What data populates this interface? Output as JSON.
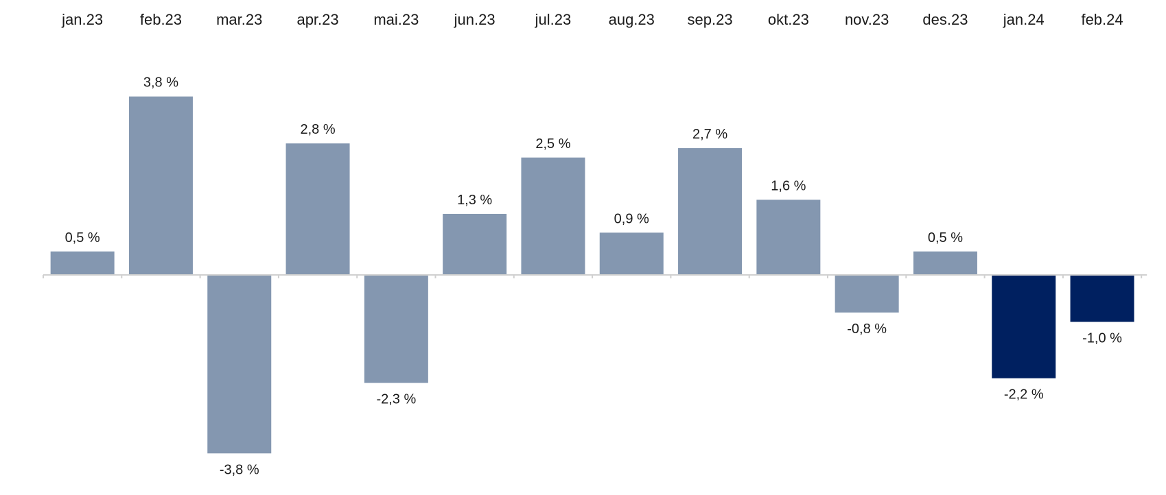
{
  "chart_data": {
    "type": "bar",
    "categories": [
      "jan.23",
      "feb.23",
      "mar.23",
      "apr.23",
      "mai.23",
      "jun.23",
      "jul.23",
      "aug.23",
      "sep.23",
      "okt.23",
      "nov.23",
      "des.23",
      "jan.24",
      "feb.24"
    ],
    "values": [
      0.5,
      3.8,
      -3.8,
      2.8,
      -2.3,
      1.3,
      2.5,
      0.9,
      2.7,
      1.6,
      -0.8,
      0.5,
      -2.2,
      -1.0
    ],
    "value_labels": [
      "0,5 %",
      "3,8 %",
      "-3,8 %",
      "2,8 %",
      "-2,3 %",
      "1,3 %",
      "2,5 %",
      "0,9 %",
      "2,7 %",
      "1,6 %",
      "-0,8 %",
      "0,5 %",
      "-2,2 %",
      "-1,0 %"
    ],
    "highlighted": [
      false,
      false,
      false,
      false,
      false,
      false,
      false,
      false,
      false,
      false,
      false,
      false,
      true,
      true
    ],
    "title": "",
    "xlabel": "",
    "ylabel": "",
    "ylim": [
      -4,
      4
    ],
    "category_labels_position": "top",
    "grid": false,
    "legend": "none",
    "colors": {
      "bar": "#8497b0",
      "bar_highlight": "#002060",
      "axis": "#d0d0d0",
      "text": "#1a1a1a"
    }
  }
}
